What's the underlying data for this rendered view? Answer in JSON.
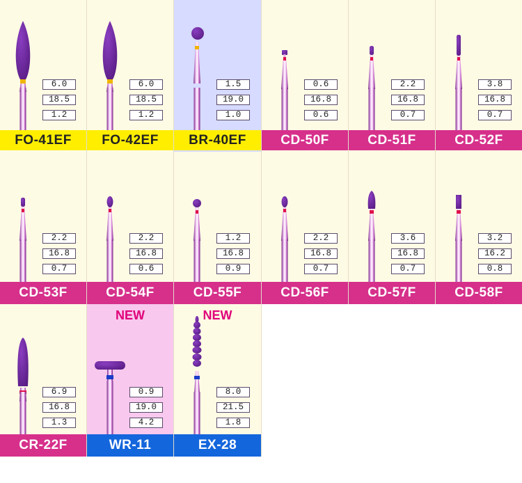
{
  "colors": {
    "cream": "#fefbe5",
    "lavender": "#d6dbff",
    "pink_bg": "#f8c8ee",
    "label_magenta": "#d6308b",
    "label_yellow": "#ffee00",
    "label_blue": "#1466dc",
    "bur_purple": "#5a1d86",
    "band_gold": "#f0b400",
    "band_red": "#e0104a",
    "band_blue": "#1a3cc8"
  },
  "products": [
    {
      "code": "FO-41EF",
      "specs": [
        "6.0",
        "18.5",
        "1.2"
      ],
      "head": "flame",
      "band": "gold",
      "bg": "cream",
      "label": "yellow"
    },
    {
      "code": "FO-42EF",
      "specs": [
        "6.0",
        "18.5",
        "1.2"
      ],
      "head": "flame",
      "band": "gold",
      "bg": "cream",
      "label": "yellow"
    },
    {
      "code": "BR-40EF",
      "specs": [
        "1.5",
        "19.0",
        "1.0"
      ],
      "head": "ball_large",
      "band": "gold",
      "bg": "lavender",
      "label": "yellow"
    },
    {
      "code": "CD-50F",
      "specs": [
        "0.6",
        "16.8",
        "0.6"
      ],
      "head": "tiny_cap",
      "band": "red",
      "bg": "cream",
      "label": "magenta"
    },
    {
      "code": "CD-51F",
      "specs": [
        "2.2",
        "16.8",
        "0.7"
      ],
      "head": "small_cyl",
      "band": "red",
      "bg": "cream",
      "label": "magenta"
    },
    {
      "code": "CD-52F",
      "specs": [
        "3.8",
        "16.8",
        "0.7"
      ],
      "head": "tall_cyl",
      "band": "red",
      "bg": "cream",
      "label": "magenta"
    },
    {
      "code": "CD-53F",
      "specs": [
        "2.2",
        "16.8",
        "0.7"
      ],
      "head": "small_cyl",
      "band": "red",
      "bg": "cream",
      "label": "magenta"
    },
    {
      "code": "CD-54F",
      "specs": [
        "2.2",
        "16.8",
        "0.6"
      ],
      "head": "egg",
      "band": "red",
      "bg": "cream",
      "label": "magenta"
    },
    {
      "code": "CD-55F",
      "specs": [
        "1.2",
        "16.8",
        "0.9"
      ],
      "head": "ball_small",
      "band": "red",
      "bg": "cream",
      "label": "magenta"
    },
    {
      "code": "CD-56F",
      "specs": [
        "2.2",
        "16.8",
        "0.7"
      ],
      "head": "egg",
      "band": "red",
      "bg": "cream",
      "label": "magenta"
    },
    {
      "code": "CD-57F",
      "specs": [
        "3.6",
        "16.8",
        "0.7"
      ],
      "head": "taper",
      "band": "red",
      "bg": "cream",
      "label": "magenta"
    },
    {
      "code": "CD-58F",
      "specs": [
        "3.2",
        "16.2",
        "0.8"
      ],
      "head": "flat_cyl",
      "band": "red",
      "bg": "cream",
      "label": "magenta"
    },
    {
      "code": "CR-22F",
      "specs": [
        "6.9",
        "16.8",
        "1.3"
      ],
      "head": "long_taper",
      "band": "red",
      "bg": "cream",
      "label": "magenta"
    },
    {
      "code": "WR-11",
      "specs": [
        "0.9",
        "19.0",
        "4.2"
      ],
      "head": "wheel",
      "band": "blue",
      "bg": "pink",
      "label": "blue",
      "badge": "NEW"
    },
    {
      "code": "EX-28",
      "specs": [
        "8.0",
        "21.5",
        "1.8"
      ],
      "head": "beads",
      "band": "blue",
      "bg": "cream",
      "label": "blue",
      "badge": "NEW"
    }
  ]
}
